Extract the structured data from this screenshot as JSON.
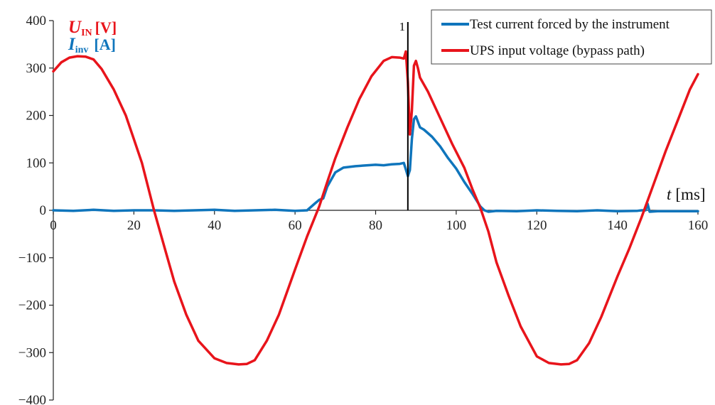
{
  "chart_data": {
    "type": "line",
    "x_unit_label": {
      "symbol": "t",
      "unit": "[ms]"
    },
    "xlim": [
      0,
      160
    ],
    "ylim": [
      -400,
      400
    ],
    "x_ticks": [
      0,
      20,
      40,
      60,
      80,
      100,
      120,
      140,
      160
    ],
    "y_ticks": [
      400,
      300,
      200,
      100,
      0,
      -100,
      -200,
      -300,
      -400
    ],
    "y_tick_labels": [
      "400",
      "300",
      "200",
      "100",
      "0",
      "−100",
      "−200",
      "−300",
      "−400"
    ],
    "ylabel_voltage": {
      "symbol": "U",
      "sub": "IN",
      "unit": "[V]",
      "color": "#e8141b"
    },
    "ylabel_current": {
      "symbol": "I",
      "sub": "inv",
      "unit": "[A]",
      "color": "#0f75bc"
    },
    "marker": {
      "x": 88,
      "label": "1"
    },
    "legend_position": "top-right",
    "grid": false,
    "series": [
      {
        "name": "Test current forced by the instrument",
        "color": "#0f75bc",
        "x": [
          0,
          5,
          10,
          15,
          20,
          25,
          30,
          35,
          40,
          45,
          50,
          55,
          60,
          63,
          65,
          66,
          67,
          68,
          69,
          70,
          72,
          75,
          78,
          80,
          82,
          84,
          86,
          87,
          88,
          88.5,
          89,
          89.5,
          90,
          91,
          92,
          94,
          96,
          98,
          100,
          102,
          104,
          106,
          107,
          108,
          110,
          115,
          120,
          125,
          130,
          135,
          140,
          145,
          146,
          147,
          147.5,
          148,
          150,
          155,
          160
        ],
        "values": [
          0,
          -1,
          1,
          -1,
          0,
          0,
          -1,
          0,
          1,
          -1,
          0,
          1,
          -1,
          0,
          15,
          22,
          25,
          50,
          65,
          80,
          90,
          93,
          95,
          96,
          95,
          97,
          98,
          100,
          72,
          85,
          150,
          192,
          198,
          175,
          170,
          155,
          135,
          110,
          88,
          60,
          35,
          8,
          0,
          -3,
          -1,
          -2,
          0,
          -1,
          -2,
          0,
          -2,
          -1,
          0,
          0,
          14,
          -3,
          -2,
          -2,
          -2
        ]
      },
      {
        "name": "UPS input voltage (bypass path)",
        "color": "#e8141b",
        "x": [
          0,
          2,
          4,
          6,
          8,
          10,
          12,
          15,
          18,
          20,
          22,
          25,
          28,
          30,
          33,
          36,
          40,
          43,
          46,
          48,
          50,
          53,
          56,
          60,
          63,
          66,
          68,
          70,
          73,
          76,
          79,
          82,
          84,
          86,
          87,
          87.5,
          88,
          88.5,
          89,
          89.5,
          90,
          90.5,
          91,
          93,
          96,
          99,
          102,
          104,
          106,
          108,
          110,
          113,
          116,
          120,
          123,
          126,
          128,
          130,
          133,
          136,
          140,
          143,
          146,
          149,
          152,
          155,
          158,
          160
        ],
        "values": [
          293,
          312,
          322,
          325,
          324,
          318,
          298,
          255,
          200,
          150,
          100,
          0,
          -90,
          -150,
          -220,
          -275,
          -312,
          -322,
          -325,
          -324,
          -316,
          -275,
          -220,
          -125,
          -55,
          8,
          60,
          110,
          175,
          235,
          283,
          315,
          323,
          322,
          320,
          335,
          270,
          160,
          210,
          305,
          315,
          300,
          280,
          250,
          195,
          140,
          90,
          45,
          5,
          -45,
          -110,
          -180,
          -245,
          -308,
          -322,
          -325,
          -324,
          -316,
          -280,
          -225,
          -140,
          -80,
          -15,
          55,
          125,
          190,
          255,
          287
        ]
      }
    ]
  }
}
